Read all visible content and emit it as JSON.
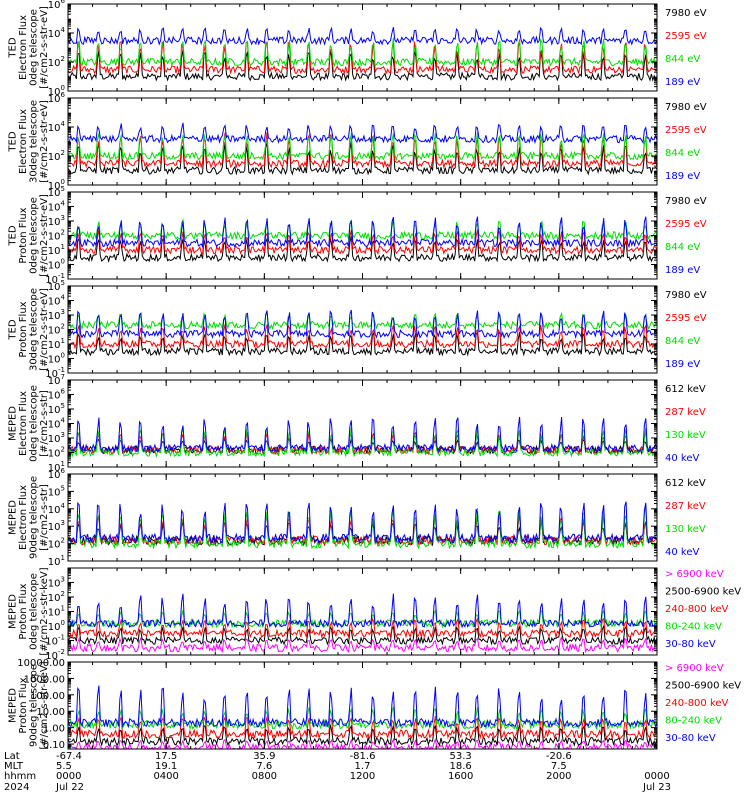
{
  "chart_data": [
    {
      "type": "line",
      "ylabel": [
        "TED",
        "Electron Flux",
        "0deg telescope",
        "[#/cm2-s-str-eV]"
      ],
      "y_scale": "log",
      "ylim": [
        1,
        1000000
      ],
      "yticks": [
        {
          "label": "10",
          "exp": "6",
          "value": 1000000
        },
        {
          "label": "10",
          "exp": "4",
          "value": 10000
        },
        {
          "label": "10",
          "exp": "2",
          "value": 100
        },
        {
          "label": "10",
          "exp": "0",
          "value": 1
        }
      ],
      "series": [
        {
          "name": "7980 eV",
          "color": "#000000",
          "base": 10,
          "peak": 5000
        },
        {
          "name": "2595 eV",
          "color": "#ff0000",
          "base": 30,
          "peak": 30000
        },
        {
          "name": "844 eV",
          "color": "#00dd00",
          "base": 100,
          "peak": 20000
        },
        {
          "name": "189 eV",
          "color": "#0000ff",
          "base": 3000,
          "peak": 60000
        }
      ]
    },
    {
      "type": "line",
      "ylabel": [
        "TED",
        "Electron Flux",
        "30deg telescope",
        "[#/cm2-s-str-eV]"
      ],
      "y_scale": "log",
      "ylim": [
        1,
        1000000
      ],
      "yticks": [
        {
          "label": "10",
          "exp": "6",
          "value": 1000000
        },
        {
          "label": "10",
          "exp": "4",
          "value": 10000
        },
        {
          "label": "10",
          "exp": "2",
          "value": 100
        },
        {
          "label": "10",
          "exp": "0",
          "value": 1
        }
      ],
      "series": [
        {
          "name": "7980 eV",
          "color": "#000000",
          "base": 10,
          "peak": 5000
        },
        {
          "name": "2595 eV",
          "color": "#ff0000",
          "base": 30,
          "peak": 30000
        },
        {
          "name": "844 eV",
          "color": "#00dd00",
          "base": 100,
          "peak": 20000
        },
        {
          "name": "189 eV",
          "color": "#0000ff",
          "base": 1500,
          "peak": 60000
        }
      ]
    },
    {
      "type": "line",
      "ylabel": [
        "TED",
        "Proton Flux",
        "0deg telescope",
        "[#/cm2-s-str-eV]"
      ],
      "y_scale": "log",
      "ylim": [
        0.1,
        100000
      ],
      "yticks": [
        {
          "label": "10",
          "exp": "5",
          "value": 100000
        },
        {
          "label": "10",
          "exp": "4",
          "value": 10000
        },
        {
          "label": "10",
          "exp": "3",
          "value": 1000
        },
        {
          "label": "10",
          "exp": "2",
          "value": 100
        },
        {
          "label": "10",
          "exp": "1",
          "value": 10
        },
        {
          "label": "10",
          "exp": "0",
          "value": 1
        },
        {
          "label": "10",
          "exp": "-1",
          "value": 0.1
        }
      ],
      "series": [
        {
          "name": "7980 eV",
          "color": "#000000",
          "base": 3,
          "peak": 300
        },
        {
          "name": "2595 eV",
          "color": "#ff0000",
          "base": 10,
          "peak": 1000
        },
        {
          "name": "844 eV",
          "color": "#00dd00",
          "base": 100,
          "peak": 3000
        },
        {
          "name": "189 eV",
          "color": "#0000ff",
          "base": 30,
          "peak": 10000
        }
      ]
    },
    {
      "type": "line",
      "ylabel": [
        "TED",
        "Proton Flux",
        "30deg telescope",
        "[#/cm2-s-str-eV]"
      ],
      "y_scale": "log",
      "ylim": [
        0.1,
        100000
      ],
      "yticks": [
        {
          "label": "10",
          "exp": "5",
          "value": 100000
        },
        {
          "label": "10",
          "exp": "4",
          "value": 10000
        },
        {
          "label": "10",
          "exp": "3",
          "value": 1000
        },
        {
          "label": "10",
          "exp": "2",
          "value": 100
        },
        {
          "label": "10",
          "exp": "1",
          "value": 10
        },
        {
          "label": "10",
          "exp": "0",
          "value": 1
        },
        {
          "label": "10",
          "exp": "-1",
          "value": 0.1
        }
      ],
      "series": [
        {
          "name": "7980 eV",
          "color": "#000000",
          "base": 3,
          "peak": 300
        },
        {
          "name": "2595 eV",
          "color": "#ff0000",
          "base": 10,
          "peak": 1000
        },
        {
          "name": "844 eV",
          "color": "#00dd00",
          "base": 200,
          "peak": 3000
        },
        {
          "name": "189 eV",
          "color": "#0000ff",
          "base": 50,
          "peak": 10000
        }
      ]
    },
    {
      "type": "line",
      "ylabel": [
        "MEPED",
        "Electron Flux",
        "0deg telescope",
        "[#/cm2-s-str]"
      ],
      "y_scale": "log",
      "ylim": [
        10,
        10000000
      ],
      "yticks": [
        {
          "label": "10",
          "exp": "7",
          "value": 10000000
        },
        {
          "label": "10",
          "exp": "6",
          "value": 1000000
        },
        {
          "label": "10",
          "exp": "5",
          "value": 100000
        },
        {
          "label": "10",
          "exp": "4",
          "value": 10000
        },
        {
          "label": "10",
          "exp": "3",
          "value": 1000
        },
        {
          "label": "10",
          "exp": "2",
          "value": 100
        },
        {
          "label": "10",
          "exp": "1",
          "value": 10
        }
      ],
      "series": [
        {
          "name": "612 keV",
          "color": "#000000",
          "base": 150,
          "peak": 2000
        },
        {
          "name": "287 keV",
          "color": "#ff0000",
          "base": 150,
          "peak": 10000
        },
        {
          "name": "130 keV",
          "color": "#00dd00",
          "base": 100,
          "peak": 30000
        },
        {
          "name": "40 keV",
          "color": "#0000ff",
          "base": 200,
          "peak": 300000
        }
      ]
    },
    {
      "type": "line",
      "ylabel": [
        "MEPED",
        "Electron Flux",
        "90deg telescope",
        "[#/cm2-s-str]"
      ],
      "y_scale": "log",
      "ylim": [
        10,
        1000000
      ],
      "yticks": [
        {
          "label": "10",
          "exp": "6",
          "value": 1000000
        },
        {
          "label": "10",
          "exp": "5",
          "value": 100000
        },
        {
          "label": "10",
          "exp": "4",
          "value": 10000
        },
        {
          "label": "10",
          "exp": "3",
          "value": 1000
        },
        {
          "label": "10",
          "exp": "2",
          "value": 100
        },
        {
          "label": "10",
          "exp": "1",
          "value": 10
        }
      ],
      "series": [
        {
          "name": "612 keV",
          "color": "#000000",
          "base": 150,
          "peak": 5000
        },
        {
          "name": "287 keV",
          "color": "#ff0000",
          "base": 150,
          "peak": 20000
        },
        {
          "name": "130 keV",
          "color": "#00dd00",
          "base": 100,
          "peak": 100000
        },
        {
          "name": "40 keV",
          "color": "#0000ff",
          "base": 200,
          "peak": 300000
        }
      ]
    },
    {
      "type": "line",
      "ylabel": [
        "MEPED",
        "Proton Flux",
        "0deg telescope",
        "[#/cm2-s-str-keV]"
      ],
      "y_scale": "log",
      "ylim": [
        0.01,
        10000
      ],
      "yticks": [
        {
          "label": "10",
          "exp": "3",
          "value": 1000
        },
        {
          "label": "10",
          "exp": "2",
          "value": 100
        },
        {
          "label": "10",
          "exp": "1",
          "value": 10
        },
        {
          "label": "10",
          "exp": "0",
          "value": 1
        },
        {
          "label": "10",
          "exp": "-1",
          "value": 0.1
        },
        {
          "label": "10",
          "exp": "-2",
          "value": 0.01
        }
      ],
      "series": [
        {
          "name": "> 6900 keV",
          "color": "#ff00ff",
          "base": 0.03,
          "peak": 0.3
        },
        {
          "name": "2500-6900 keV",
          "color": "#000000",
          "base": 0.1,
          "peak": 3
        },
        {
          "name": "240-800 keV",
          "color": "#ff0000",
          "base": 0.3,
          "peak": 10
        },
        {
          "name": "80-240 keV",
          "color": "#00dd00",
          "base": 1.5,
          "peak": 30
        },
        {
          "name": "30-80 keV",
          "color": "#0000ff",
          "base": 1.5,
          "peak": 1000
        }
      ]
    },
    {
      "type": "line",
      "ylabel": [
        "MEPED",
        "Proton Flux",
        "90deg telescope",
        "[#/cm2-s-str-keV]"
      ],
      "y_scale": "log",
      "ylim": [
        0.05,
        10000
      ],
      "yticks": [
        {
          "label": "10000.00",
          "value": 10000
        },
        {
          "label": "1000.00",
          "value": 1000
        },
        {
          "label": "100.00",
          "value": 100
        },
        {
          "label": "10.00",
          "value": 10
        },
        {
          "label": "1.00",
          "value": 1
        },
        {
          "label": "0.10",
          "value": 0.1
        }
      ],
      "series": [
        {
          "name": "> 6900 keV",
          "color": "#ff00ff",
          "base": 0.06,
          "peak": 0.3
        },
        {
          "name": "2500-6900 keV",
          "color": "#000000",
          "base": 0.15,
          "peak": 5
        },
        {
          "name": "240-800 keV",
          "color": "#ff0000",
          "base": 0.4,
          "peak": 15
        },
        {
          "name": "80-240 keV",
          "color": "#00dd00",
          "base": 1.5,
          "peak": 50
        },
        {
          "name": "30-80 keV",
          "color": "#0000ff",
          "base": 2,
          "peak": 3000
        }
      ]
    }
  ],
  "x_axis": {
    "row_labels": [
      "Lat",
      "MLT",
      "hhmm",
      "2024"
    ],
    "ticks": [
      {
        "lat": "-67.4",
        "mlt": "5.5",
        "hhmm": "0000",
        "date": "Jul 22"
      },
      {
        "lat": "17.5",
        "mlt": "19.1",
        "hhmm": "0400",
        "date": ""
      },
      {
        "lat": "35.9",
        "mlt": "7.6",
        "hhmm": "0800",
        "date": ""
      },
      {
        "lat": "-81.6",
        "mlt": "1.7",
        "hhmm": "1200",
        "date": ""
      },
      {
        "lat": "53.3",
        "mlt": "18.6",
        "hhmm": "1600",
        "date": ""
      },
      {
        "lat": "-20.6",
        "mlt": "7.5",
        "hhmm": "2000",
        "date": ""
      },
      {
        "lat": "",
        "mlt": "",
        "hhmm": "0000",
        "date": "Jul 23"
      }
    ],
    "orbits": 14
  }
}
